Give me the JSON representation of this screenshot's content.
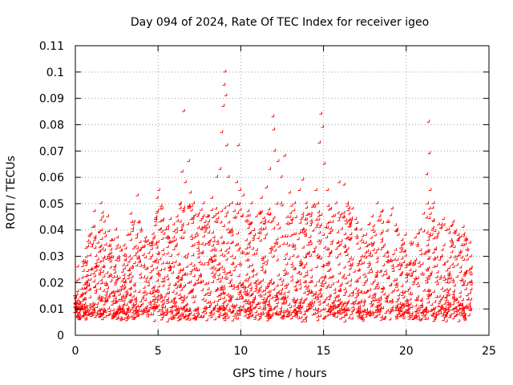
{
  "chart_data": {
    "type": "scatter",
    "title": "Day 094 of 2024, Rate Of TEC Index for receiver igeo",
    "xlabel": "GPS time / hours",
    "ylabel": "ROTI / TECUs",
    "xlim": [
      0,
      25
    ],
    "ylim": [
      0,
      0.11
    ],
    "x_ticks": [
      0,
      5,
      10,
      15,
      20,
      25
    ],
    "x_tick_labels": [
      "0",
      "5",
      "10",
      "15",
      "20",
      "25"
    ],
    "y_ticks": [
      0,
      0.01,
      0.02,
      0.03,
      0.04,
      0.05,
      0.06,
      0.07,
      0.08,
      0.09,
      0.1,
      0.11
    ],
    "y_tick_labels": [
      "0",
      "0.01",
      "0.02",
      "0.03",
      "0.04",
      "0.05",
      "0.06",
      "0.07",
      "0.08",
      "0.09",
      "0.1",
      "0.11"
    ],
    "grid": true,
    "marker": "+",
    "color": "#ff0000",
    "series": [
      {
        "name": "ROTI",
        "points": [
          [
            0.0,
            0.015
          ],
          [
            0.1,
            0.02
          ],
          [
            0.2,
            0.026
          ],
          [
            0.3,
            0.012
          ],
          [
            0.5,
            0.028
          ],
          [
            0.7,
            0.033
          ],
          [
            0.9,
            0.038
          ],
          [
            1.1,
            0.041
          ],
          [
            1.2,
            0.047
          ],
          [
            1.3,
            0.03
          ],
          [
            1.5,
            0.039
          ],
          [
            1.6,
            0.05
          ],
          [
            1.8,
            0.043
          ],
          [
            2.0,
            0.045
          ],
          [
            2.2,
            0.036
          ],
          [
            2.5,
            0.04
          ],
          [
            2.8,
            0.032
          ],
          [
            3.0,
            0.034
          ],
          [
            3.2,
            0.038
          ],
          [
            3.4,
            0.046
          ],
          [
            3.6,
            0.043
          ],
          [
            3.8,
            0.053
          ],
          [
            4.0,
            0.04
          ],
          [
            4.3,
            0.037
          ],
          [
            4.6,
            0.035
          ],
          [
            4.9,
            0.044
          ],
          [
            5.0,
            0.052
          ],
          [
            5.1,
            0.055
          ],
          [
            5.3,
            0.048
          ],
          [
            5.5,
            0.04
          ],
          [
            5.8,
            0.044
          ],
          [
            6.0,
            0.042
          ],
          [
            6.2,
            0.045
          ],
          [
            6.4,
            0.05
          ],
          [
            6.5,
            0.062
          ],
          [
            6.6,
            0.085
          ],
          [
            6.7,
            0.058
          ],
          [
            6.9,
            0.066
          ],
          [
            7.0,
            0.054
          ],
          [
            7.2,
            0.05
          ],
          [
            7.5,
            0.046
          ],
          [
            7.8,
            0.05
          ],
          [
            8.0,
            0.045
          ],
          [
            8.3,
            0.052
          ],
          [
            8.6,
            0.06
          ],
          [
            8.8,
            0.063
          ],
          [
            8.9,
            0.077
          ],
          [
            9.0,
            0.087
          ],
          [
            9.05,
            0.095
          ],
          [
            9.1,
            0.1
          ],
          [
            9.15,
            0.091
          ],
          [
            9.2,
            0.072
          ],
          [
            9.3,
            0.06
          ],
          [
            9.5,
            0.05
          ],
          [
            9.8,
            0.058
          ],
          [
            9.9,
            0.072
          ],
          [
            10.0,
            0.055
          ],
          [
            10.2,
            0.053
          ],
          [
            10.5,
            0.047
          ],
          [
            10.7,
            0.05
          ],
          [
            11.0,
            0.045
          ],
          [
            11.3,
            0.052
          ],
          [
            11.6,
            0.056
          ],
          [
            11.8,
            0.063
          ],
          [
            12.0,
            0.083
          ],
          [
            12.05,
            0.078
          ],
          [
            12.1,
            0.07
          ],
          [
            12.3,
            0.066
          ],
          [
            12.5,
            0.06
          ],
          [
            12.7,
            0.068
          ],
          [
            13.0,
            0.054
          ],
          [
            13.3,
            0.05
          ],
          [
            13.6,
            0.055
          ],
          [
            13.8,
            0.059
          ],
          [
            14.0,
            0.05
          ],
          [
            14.3,
            0.046
          ],
          [
            14.6,
            0.055
          ],
          [
            14.8,
            0.073
          ],
          [
            14.9,
            0.084
          ],
          [
            15.0,
            0.079
          ],
          [
            15.1,
            0.065
          ],
          [
            15.3,
            0.055
          ],
          [
            15.6,
            0.045
          ],
          [
            15.8,
            0.05
          ],
          [
            16.0,
            0.058
          ],
          [
            16.3,
            0.057
          ],
          [
            16.5,
            0.05
          ],
          [
            16.8,
            0.048
          ],
          [
            17.0,
            0.044
          ],
          [
            17.3,
            0.04
          ],
          [
            17.6,
            0.038
          ],
          [
            17.8,
            0.042
          ],
          [
            18.0,
            0.045
          ],
          [
            18.3,
            0.05
          ],
          [
            18.6,
            0.047
          ],
          [
            18.9,
            0.043
          ],
          [
            19.2,
            0.048
          ],
          [
            19.5,
            0.04
          ],
          [
            19.8,
            0.036
          ],
          [
            20.0,
            0.038
          ],
          [
            20.3,
            0.035
          ],
          [
            20.6,
            0.037
          ],
          [
            20.9,
            0.04
          ],
          [
            21.1,
            0.046
          ],
          [
            21.3,
            0.061
          ],
          [
            21.4,
            0.081
          ],
          [
            21.45,
            0.069
          ],
          [
            21.5,
            0.055
          ],
          [
            21.7,
            0.05
          ],
          [
            22.0,
            0.042
          ],
          [
            22.3,
            0.044
          ],
          [
            22.6,
            0.04
          ],
          [
            22.9,
            0.043
          ],
          [
            23.2,
            0.038
          ],
          [
            23.5,
            0.041
          ],
          [
            23.7,
            0.036
          ],
          [
            23.9,
            0.035
          ]
        ]
      }
    ]
  }
}
